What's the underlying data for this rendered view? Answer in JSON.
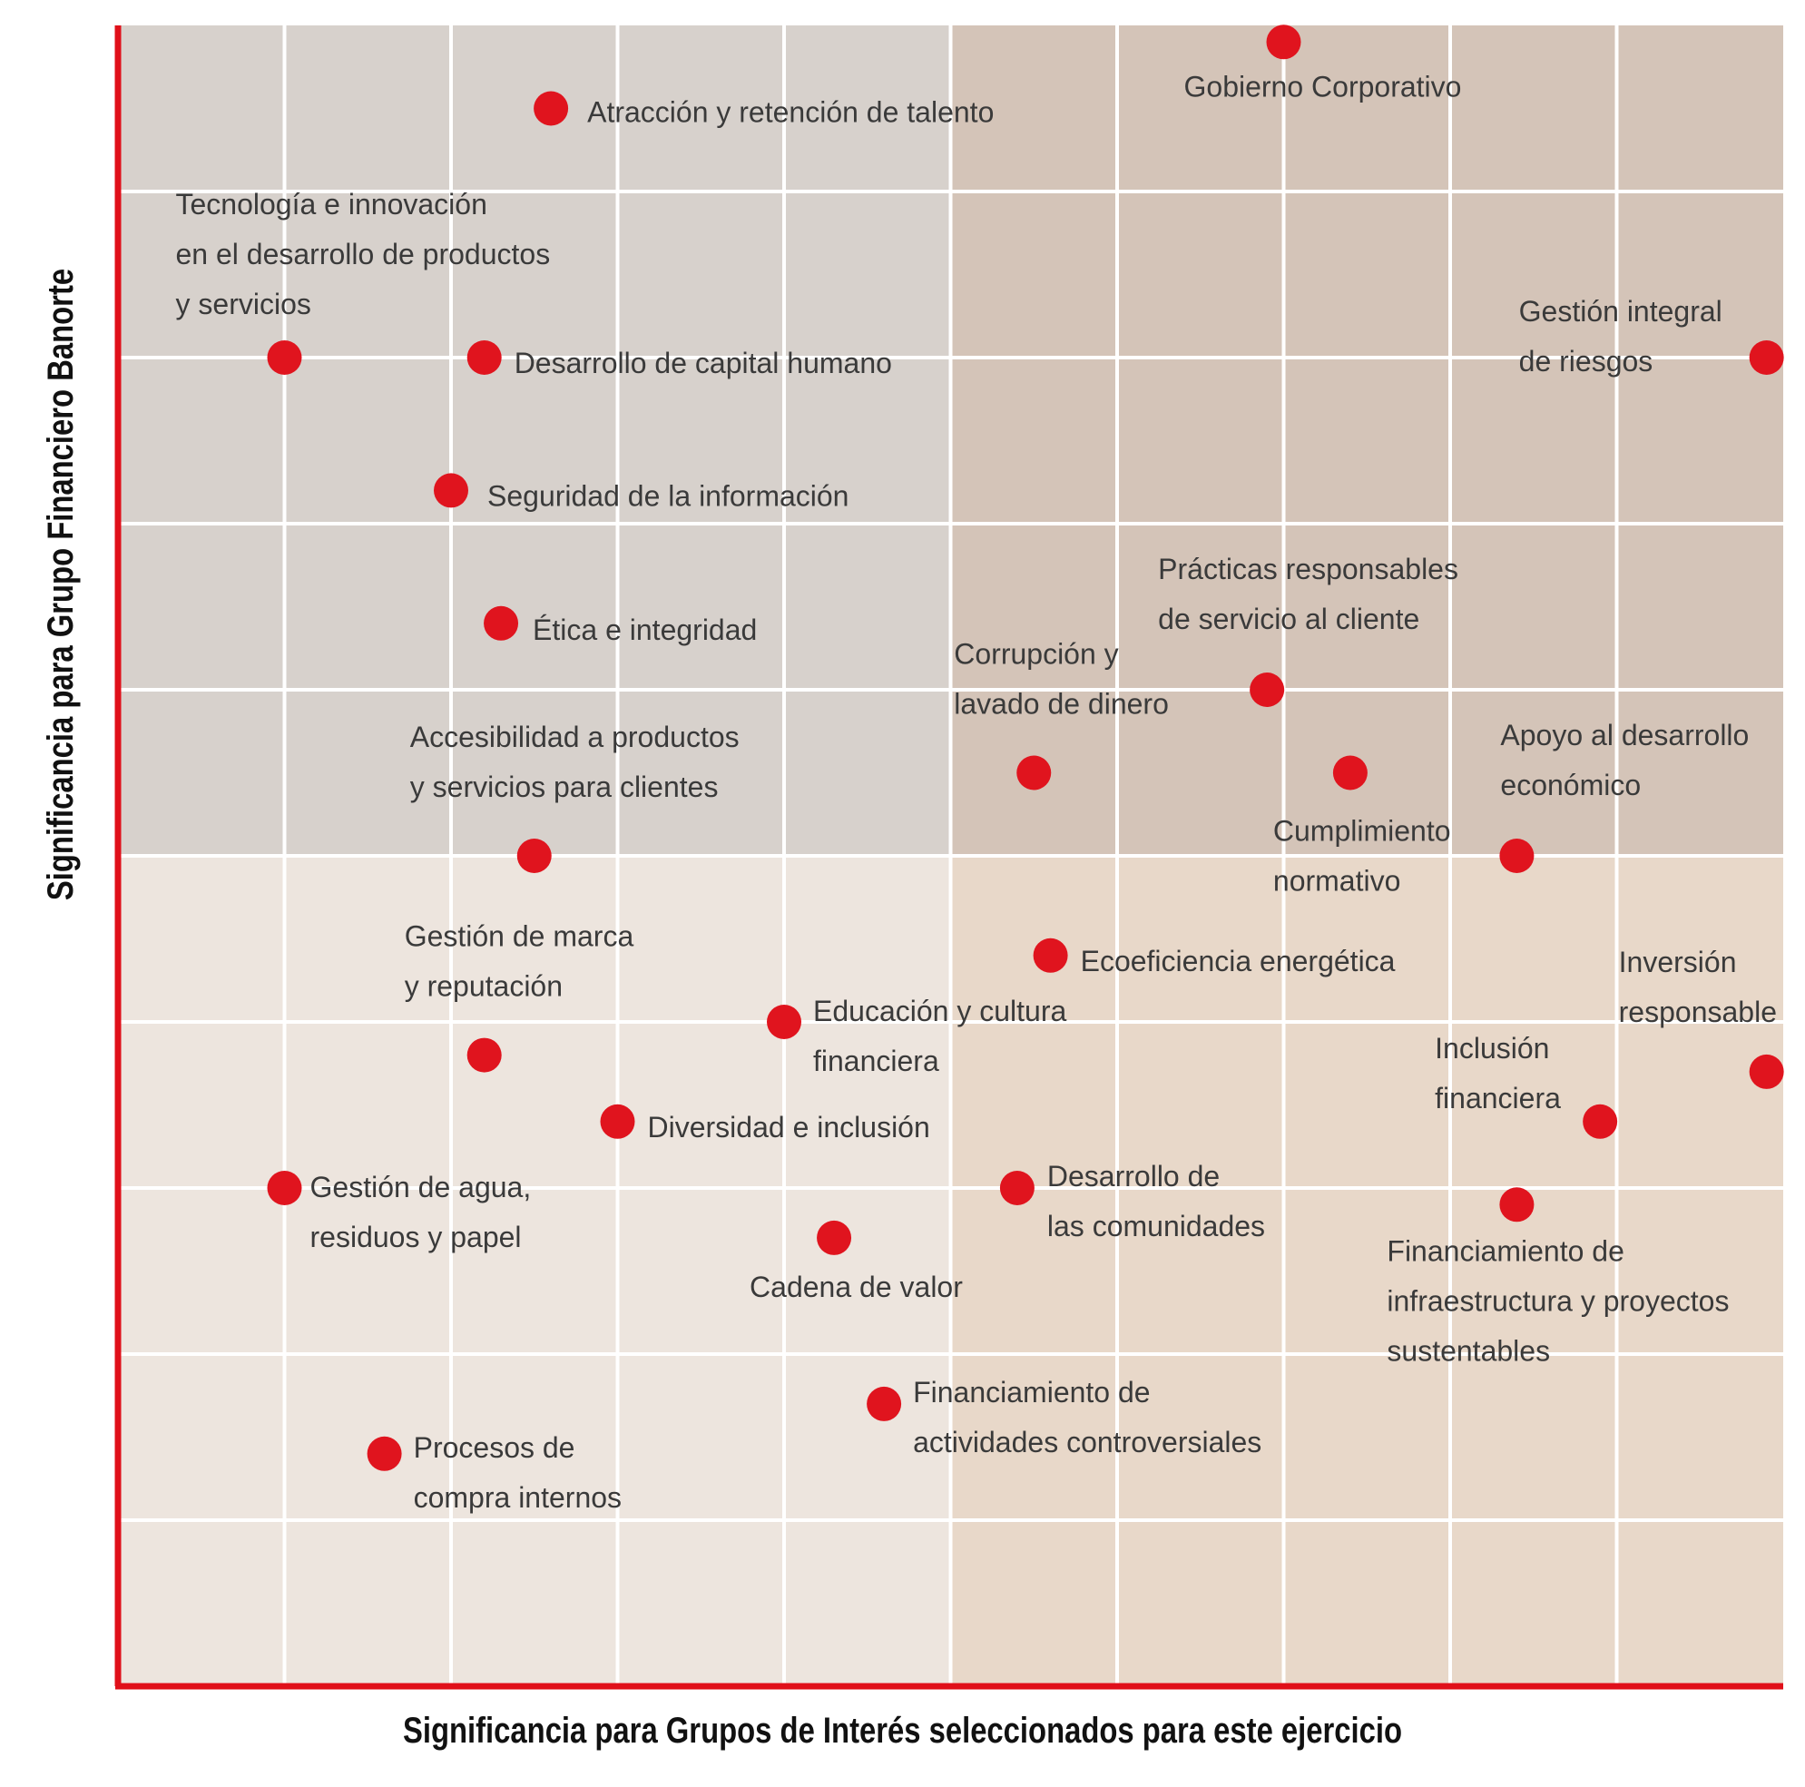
{
  "chart_data": {
    "type": "scatter",
    "xlabel": "Significancia para Grupos de Interés seleccionados para este ejercicio",
    "ylabel": "Significancia para Grupo Financiero Banorte",
    "xlim": [
      0,
      10
    ],
    "ylim": [
      0,
      10
    ],
    "grid": true,
    "quadrant_split": {
      "x": 5,
      "y": 5
    },
    "colors": {
      "top_left": "#d7d1cc",
      "top_right": "#d4c4b8",
      "bottom_left": "#ede5de",
      "bottom_right": "#e8d8c9",
      "grid": "#ffffff",
      "axis": "#e0101a",
      "point": "#e0141e"
    },
    "points": [
      {
        "label": [
          "Gobierno Corporativo"
        ],
        "x": 7.0,
        "y": 9.9
      },
      {
        "label": [
          "Atracción y retención de talento"
        ],
        "x": 2.6,
        "y": 9.5
      },
      {
        "label": [
          "Tecnología e innovación",
          "en el desarrollo de productos",
          " y servicios"
        ],
        "x": 1.0,
        "y": 8.0
      },
      {
        "label": [
          "Desarrollo de capital humano"
        ],
        "x": 2.2,
        "y": 8.0
      },
      {
        "label": [
          "Gestión integral",
          "de riesgos"
        ],
        "x": 9.9,
        "y": 8.0
      },
      {
        "label": [
          "Seguridad de la información"
        ],
        "x": 2.0,
        "y": 7.2
      },
      {
        "label": [
          "Ética e integridad"
        ],
        "x": 2.3,
        "y": 6.4
      },
      {
        "label": [
          "Prácticas responsables",
          "de servicio al cliente"
        ],
        "x": 6.9,
        "y": 6.0
      },
      {
        "label": [
          "Corrupción y",
          "lavado de dinero"
        ],
        "x": 5.5,
        "y": 5.5
      },
      {
        "label": [
          "Cumplimiento",
          "normativo"
        ],
        "x": 7.4,
        "y": 5.5
      },
      {
        "label": [
          "Accesibilidad a productos",
          "y servicios para clientes"
        ],
        "x": 2.5,
        "y": 5.0
      },
      {
        "label": [
          "Apoyo al desarrollo",
          "económico"
        ],
        "x": 8.4,
        "y": 5.0
      },
      {
        "label": [
          "Ecoeficiencia energética"
        ],
        "x": 5.6,
        "y": 4.4
      },
      {
        "label": [
          "Educación y cultura",
          "financiera"
        ],
        "x": 4.0,
        "y": 4.0
      },
      {
        "label": [
          "Gestión de marca",
          "y reputación"
        ],
        "x": 2.2,
        "y": 3.8
      },
      {
        "label": [
          "Inversión",
          "responsable"
        ],
        "x": 9.9,
        "y": 3.7
      },
      {
        "label": [
          "Diversidad e inclusión"
        ],
        "x": 3.0,
        "y": 3.4
      },
      {
        "label": [
          "Inclusión",
          "financiera"
        ],
        "x": 8.9,
        "y": 3.4
      },
      {
        "label": [
          "Gestión de agua,",
          "residuos y papel"
        ],
        "x": 1.0,
        "y": 3.0
      },
      {
        "label": [
          "Desarrollo de",
          "las comunidades"
        ],
        "x": 5.4,
        "y": 3.0
      },
      {
        "label": [
          "Financiamiento de",
          "infraestructura y proyectos",
          "sustentables"
        ],
        "x": 8.4,
        "y": 2.9
      },
      {
        "label": [
          "Cadena de valor"
        ],
        "x": 4.3,
        "y": 2.7
      },
      {
        "label": [
          "Financiamiento de",
          " actividades controversiales"
        ],
        "x": 4.6,
        "y": 1.7
      },
      {
        "label": [
          "Procesos de",
          "compra internos"
        ],
        "x": 1.6,
        "y": 1.4
      }
    ]
  }
}
